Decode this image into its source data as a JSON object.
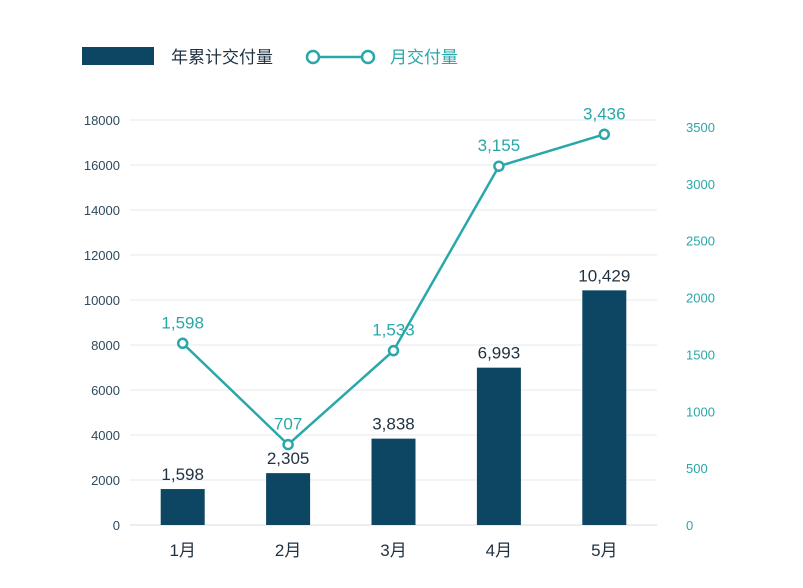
{
  "chart_data": {
    "type": "bar+line",
    "categories": [
      "1月",
      "2月",
      "3月",
      "4月",
      "5月"
    ],
    "series": [
      {
        "name": "年累计交付量",
        "kind": "bar",
        "axis": "left",
        "values": [
          1598,
          2305,
          3838,
          6993,
          10429
        ],
        "labels": [
          "1,598",
          "2,305",
          "3,838",
          "6,993",
          "10,429"
        ]
      },
      {
        "name": "月交付量",
        "kind": "line",
        "axis": "right",
        "values": [
          1598,
          707,
          1533,
          3155,
          3436
        ],
        "labels": [
          "1,598",
          "707",
          "1,533",
          "3,155",
          "3,436"
        ]
      }
    ],
    "left_axis": {
      "ylim": [
        0,
        18000
      ],
      "ticks": [
        "0",
        "2000",
        "4000",
        "6000",
        "8000",
        "10000",
        "12000",
        "14000",
        "16000",
        "18000"
      ]
    },
    "right_axis": {
      "ylim": [
        0,
        3500
      ],
      "ticks": [
        "0",
        "500",
        "1000",
        "1500",
        "2000",
        "2500",
        "3000",
        "3500"
      ]
    },
    "legend": {
      "position": "top-left"
    },
    "grid": true
  },
  "colors": {
    "bar": "#0c4662",
    "line": "#2aa7a9",
    "grid": "#e6e9ec",
    "marker_fill": "#ffffff"
  }
}
